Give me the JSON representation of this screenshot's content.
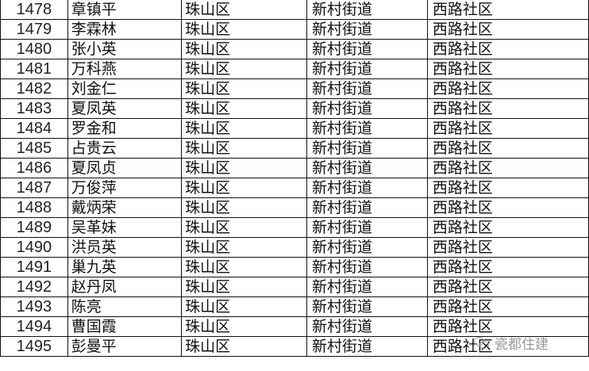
{
  "rows": [
    {
      "no": "1478",
      "name": "章镇平",
      "district": "珠山区",
      "street": "新村街道",
      "community": "西路社区"
    },
    {
      "no": "1479",
      "name": "李霖林",
      "district": "珠山区",
      "street": "新村街道",
      "community": "西路社区"
    },
    {
      "no": "1480",
      "name": "张小英",
      "district": "珠山区",
      "street": "新村街道",
      "community": "西路社区"
    },
    {
      "no": "1481",
      "name": "万科燕",
      "district": "珠山区",
      "street": "新村街道",
      "community": "西路社区"
    },
    {
      "no": "1482",
      "name": "刘金仁",
      "district": "珠山区",
      "street": "新村街道",
      "community": "西路社区"
    },
    {
      "no": "1483",
      "name": "夏凤英",
      "district": "珠山区",
      "street": "新村街道",
      "community": "西路社区"
    },
    {
      "no": "1484",
      "name": "罗金和",
      "district": "珠山区",
      "street": "新村街道",
      "community": "西路社区"
    },
    {
      "no": "1485",
      "name": "占贵云",
      "district": "珠山区",
      "street": "新村街道",
      "community": "西路社区"
    },
    {
      "no": "1486",
      "name": "夏凤贞",
      "district": "珠山区",
      "street": "新村街道",
      "community": "西路社区"
    },
    {
      "no": "1487",
      "name": "万俊萍",
      "district": "珠山区",
      "street": "新村街道",
      "community": "西路社区"
    },
    {
      "no": "1488",
      "name": "戴炳荣",
      "district": "珠山区",
      "street": "新村街道",
      "community": "西路社区"
    },
    {
      "no": "1489",
      "name": "吴革妹",
      "district": "珠山区",
      "street": "新村街道",
      "community": "西路社区"
    },
    {
      "no": "1490",
      "name": "洪员英",
      "district": "珠山区",
      "street": "新村街道",
      "community": "西路社区"
    },
    {
      "no": "1491",
      "name": "巢九英",
      "district": "珠山区",
      "street": "新村街道",
      "community": "西路社区"
    },
    {
      "no": "1492",
      "name": "赵丹凤",
      "district": "珠山区",
      "street": "新村街道",
      "community": "西路社区"
    },
    {
      "no": "1493",
      "name": "陈亮",
      "district": "珠山区",
      "street": "新村街道",
      "community": "西路社区"
    },
    {
      "no": "1494",
      "name": "曹国霞",
      "district": "珠山区",
      "street": "新村街道",
      "community": "西路社区"
    },
    {
      "no": "1495",
      "name": "彭曼平",
      "district": "珠山区",
      "street": "新村街道",
      "community": "西路社区"
    }
  ],
  "watermark": {
    "text": "瓷都住建",
    "icon": "wechat-icon"
  }
}
